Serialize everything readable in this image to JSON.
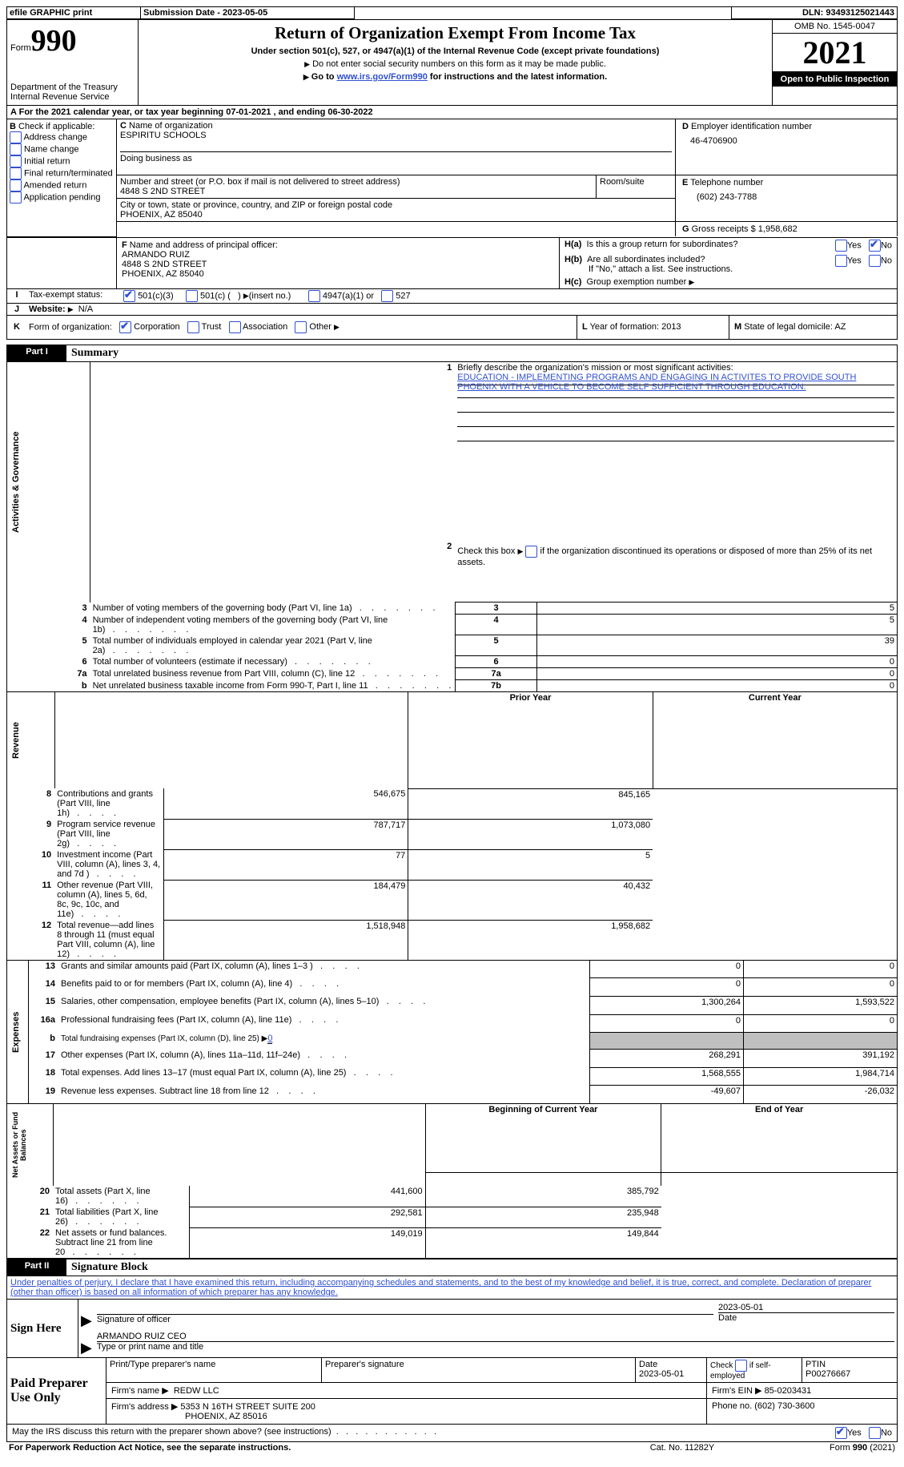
{
  "topbar": {
    "efile": "efile GRAPHIC print",
    "submission_label": "Submission Date - 2023-05-05",
    "dln_label": "DLN: 93493125021443"
  },
  "header": {
    "form_word": "Form",
    "form_num": "990",
    "dept": "Department of the Treasury",
    "irs": "Internal Revenue Service",
    "title": "Return of Organization Exempt From Income Tax",
    "subtitle": "Under section 501(c), 527, or 4947(a)(1) of the Internal Revenue Code (except private foundations)",
    "warn1": "Do not enter social security numbers on this form as it may be made public.",
    "warn2_pre": "Go to ",
    "warn2_link": "www.irs.gov/Form990",
    "warn2_post": " for instructions and the latest information.",
    "omb": "OMB No. 1545-0047",
    "year": "2021",
    "open": "Open to Public Inspection"
  },
  "A": {
    "line": "For the 2021 calendar year, or tax year beginning 07-01-2021    , and ending 06-30-2022",
    "A": "A"
  },
  "B": {
    "label": "Check if applicable:",
    "items": [
      "Address change",
      "Name change",
      "Initial return",
      "Final return/terminated",
      "Amended return",
      "Application pending"
    ],
    "B": "B"
  },
  "C": {
    "name_lbl": "Name of organization",
    "name": "ESPIRITU SCHOOLS",
    "dba_lbl": "Doing business as",
    "addr_lbl": "Number and street (or P.O. box if mail is not delivered to street address)",
    "room_lbl": "Room/suite",
    "addr": "4848 S 2ND STREET",
    "city_lbl": "City or town, state or province, country, and ZIP or foreign postal code",
    "city": "PHOENIX, AZ  85040",
    "C": "C"
  },
  "D": {
    "lbl": "Employer identification number",
    "val": "46-4706900",
    "D": "D"
  },
  "E": {
    "lbl": "Telephone number",
    "val": "(602) 243-7788",
    "E": "E"
  },
  "F": {
    "lbl": "Name and address of principal officer:",
    "l1": "ARMANDO RUIZ",
    "l2": "4848 S 2ND STREET",
    "l3": "PHOENIX, AZ  85040",
    "F": "F"
  },
  "G": {
    "lbl": "Gross receipts $",
    "val": "1,958,682",
    "G": "G"
  },
  "H": {
    "a_lbl": "Is this a group return for subordinates?",
    "b_lbl": "Are all subordinates included?",
    "b_note": "If \"No,\" attach a list. See instructions.",
    "c_lbl": "Group exemption number",
    "yes": "Yes",
    "no": "No",
    "Ha": "H(a)",
    "Hb": "H(b)",
    "Hc": "H(c)"
  },
  "I": {
    "lbl": "Tax-exempt status:",
    "opt1": "501(c)(3)",
    "opt2_a": "501(c) (",
    "opt2_b": ")",
    "opt2_c": "(insert no.)",
    "opt3": "4947(a)(1) or",
    "opt4": "527",
    "I": "I"
  },
  "J": {
    "lbl": "Website:",
    "val": "N/A",
    "J": "J"
  },
  "K": {
    "lbl": "Form of organization:",
    "opts": [
      "Corporation",
      "Trust",
      "Association",
      "Other"
    ],
    "K": "K"
  },
  "L": {
    "lbl": "Year of formation:",
    "val": "2013",
    "L": "L"
  },
  "M": {
    "lbl": "State of legal domicile:",
    "val": "AZ",
    "M": "M"
  },
  "part1": {
    "tag": "Part I",
    "title": "Summary"
  },
  "mission": {
    "num": "1",
    "lbl": "Briefly describe the organization's mission or most significant activities:",
    "text": "EDUCATION - IMPLEMENTING PROGRAMS AND ENGAGING IN ACTIVITES TO PROVIDE SOUTH PHOENIX WITH A VEHICLE TO BECOME SELF SUFFICIENT THROUGH EDUCATION."
  },
  "line2": {
    "num": "2",
    "text": "Check this box ▶         if the organization discontinued its operations or disposed of more than 25% of its net assets."
  },
  "gov_rows": [
    {
      "n": "3",
      "t": "Number of voting members of the governing body (Part VI, line 1a)",
      "box": "3",
      "v": "5"
    },
    {
      "n": "4",
      "t": "Number of independent voting members of the governing body (Part VI, line 1b)",
      "box": "4",
      "v": "5"
    },
    {
      "n": "5",
      "t": "Total number of individuals employed in calendar year 2021 (Part V, line 2a)",
      "box": "5",
      "v": "39"
    },
    {
      "n": "6",
      "t": "Total number of volunteers (estimate if necessary)",
      "box": "6",
      "v": "0"
    },
    {
      "n": "7a",
      "t": "Total unrelated business revenue from Part VIII, column (C), line 12",
      "box": "7a",
      "v": "0"
    },
    {
      "n": "b",
      "t": "Net unrelated business taxable income from Form 990-T, Part I, line 11",
      "box": "7b",
      "v": "0"
    }
  ],
  "col_headers": {
    "prior": "Prior Year",
    "current": "Current Year"
  },
  "rev_rows": [
    {
      "n": "8",
      "t": "Contributions and grants (Part VIII, line 1h)",
      "p": "546,675",
      "c": "845,165"
    },
    {
      "n": "9",
      "t": "Program service revenue (Part VIII, line 2g)",
      "p": "787,717",
      "c": "1,073,080"
    },
    {
      "n": "10",
      "t": "Investment income (Part VIII, column (A), lines 3, 4, and 7d )",
      "p": "77",
      "c": "5"
    },
    {
      "n": "11",
      "t": "Other revenue (Part VIII, column (A), lines 5, 6d, 8c, 9c, 10c, and 11e)",
      "p": "184,479",
      "c": "40,432"
    },
    {
      "n": "12",
      "t": "Total revenue—add lines 8 through 11 (must equal Part VIII, column (A), line 12)",
      "p": "1,518,948",
      "c": "1,958,682"
    }
  ],
  "exp_rows": [
    {
      "n": "13",
      "t": "Grants and similar amounts paid (Part IX, column (A), lines 1–3 )",
      "p": "0",
      "c": "0"
    },
    {
      "n": "14",
      "t": "Benefits paid to or for members (Part IX, column (A), line 4)",
      "p": "0",
      "c": "0"
    },
    {
      "n": "15",
      "t": "Salaries, other compensation, employee benefits (Part IX, column (A), lines 5–10)",
      "p": "1,300,264",
      "c": "1,593,522"
    },
    {
      "n": "16a",
      "t": "Professional fundraising fees (Part IX, column (A), line 11e)",
      "p": "0",
      "c": "0"
    }
  ],
  "exp_b": {
    "n": "b",
    "t": "Total fundraising expenses (Part IX, column (D), line 25) ▶",
    "v": "0"
  },
  "exp_rows2": [
    {
      "n": "17",
      "t": "Other expenses (Part IX, column (A), lines 11a–11d, 11f–24e)",
      "p": "268,291",
      "c": "391,192"
    },
    {
      "n": "18",
      "t": "Total expenses. Add lines 13–17 (must equal Part IX, column (A), line 25)",
      "p": "1,568,555",
      "c": "1,984,714"
    },
    {
      "n": "19",
      "t": "Revenue less expenses. Subtract line 18 from line 12",
      "p": "-49,607",
      "c": "-26,032"
    }
  ],
  "net_headers": {
    "begin": "Beginning of Current Year",
    "end": "End of Year"
  },
  "net_rows": [
    {
      "n": "20",
      "t": "Total assets (Part X, line 16)",
      "p": "441,600",
      "c": "385,792"
    },
    {
      "n": "21",
      "t": "Total liabilities (Part X, line 26)",
      "p": "292,581",
      "c": "235,948"
    },
    {
      "n": "22",
      "t": "Net assets or fund balances. Subtract line 21 from line 20",
      "p": "149,019",
      "c": "149,844"
    }
  ],
  "labels": {
    "gov": "Activities & Governance",
    "rev": "Revenue",
    "exp": "Expenses",
    "net": "Net Assets or Fund Balances"
  },
  "part2": {
    "tag": "Part II",
    "title": "Signature Block"
  },
  "sig": {
    "penalty": "Under penalties of perjury, I declare that I have examined this return, including accompanying schedules and statements, and to the best of my knowledge and belief, it is true, correct, and complete. Declaration of preparer (other than officer) is based on all information of which preparer has any knowledge.",
    "sign_here": "Sign Here",
    "sig_officer": "Signature of officer",
    "date_lbl": "Date",
    "sig_date": "2023-05-01",
    "name_title": "ARMANDO RUIZ CEO",
    "type_lbl": "Type or print name and title"
  },
  "preparer": {
    "paid": "Paid Preparer Use Only",
    "print_lbl": "Print/Type preparer's name",
    "sig_lbl": "Preparer's signature",
    "date_lbl": "Date",
    "date": "2023-05-01",
    "check_lbl": "Check          if self-employed",
    "ptin_lbl": "PTIN",
    "ptin": "P00276667",
    "firm_name_lbl": "Firm's name    ▶",
    "firm_name": "REDW LLC",
    "firm_ein_lbl": "Firm's EIN ▶",
    "firm_ein": "85-0203431",
    "firm_addr_lbl": "Firm's address ▶",
    "firm_addr1": "5353 N 16TH STREET SUITE 200",
    "firm_addr2": "PHOENIX, AZ  85016",
    "phone_lbl": "Phone no.",
    "phone": "(602) 730-3600"
  },
  "footer": {
    "discuss": "May the IRS discuss this return with the preparer shown above? (see instructions)",
    "yes": "Yes",
    "no": "No",
    "paperwork": "For Paperwork Reduction Act Notice, see the separate instructions.",
    "cat": "Cat. No. 11282Y",
    "form": "Form 990 (2021)"
  }
}
